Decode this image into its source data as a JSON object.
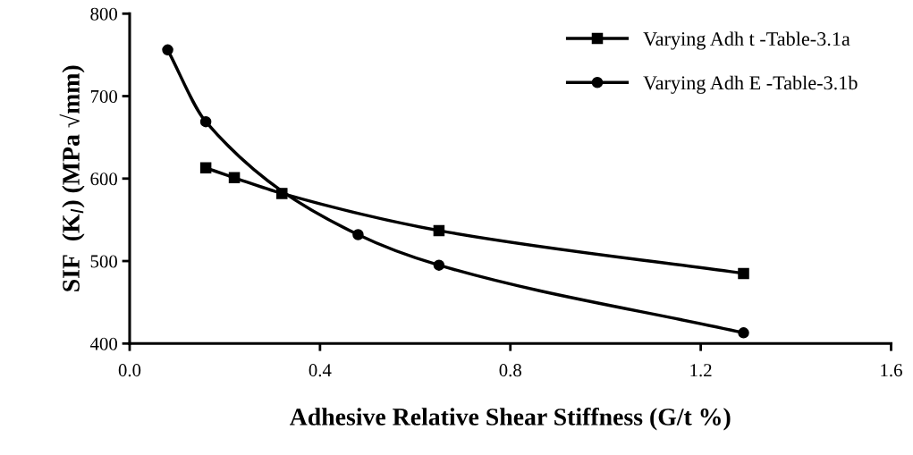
{
  "chart_data": {
    "type": "line",
    "xlabel": "Adhesive Relative Shear Stiffness (G/t %)",
    "ylabel": "SIF  (K$_{I}$) (MPa √mm)",
    "series": [
      {
        "name": "Varying Adh t -Table-3.1a",
        "color": "#000000",
        "marker": "square",
        "x": [
          0.16,
          0.22,
          0.32,
          0.65,
          1.29
        ],
        "values": [
          613,
          601,
          582,
          537,
          485
        ]
      },
      {
        "name": "Varying Adh E -Table-3.1b",
        "color": "#000000",
        "marker": "circle",
        "x": [
          0.08,
          0.16,
          0.32,
          0.48,
          0.65,
          1.29
        ],
        "values": [
          756,
          669,
          null,
          532,
          495,
          413
        ]
      }
    ],
    "xlim": [
      0.0,
      1.6
    ],
    "xticks": [
      {
        "value": 0.0,
        "label": "0.0"
      },
      0.4,
      0.8,
      1.2,
      1.6
    ],
    "ylim": [
      400,
      800
    ],
    "yticks": [
      400,
      500,
      600,
      700,
      800
    ],
    "grid": false,
    "legend": "top right",
    "line_style": "solid"
  }
}
